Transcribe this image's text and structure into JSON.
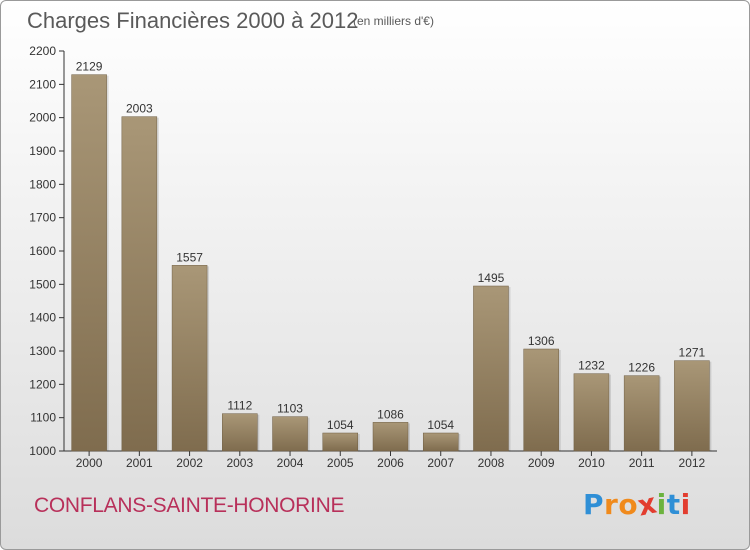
{
  "header": {
    "title": "Charges Financières 2000 à 2012",
    "unit": "(en milliers d'€)"
  },
  "footer": {
    "commune": "CONFLANS-SAINTE-HONORINE",
    "logo_letters": [
      "P",
      "r",
      "o",
      "x",
      "i",
      "t",
      "i"
    ],
    "logo_colors": [
      "#2f8fd6",
      "#f08a1c",
      "#f08a1c",
      "#e23d2f",
      "#6cb33e",
      "#2f8fd6",
      "#e23d2f"
    ]
  },
  "colors": {
    "bar_light": "#a99777",
    "bar_dark": "#7f6c4e",
    "axis": "#333333",
    "text": "#333333"
  },
  "chart_data": {
    "type": "bar",
    "title": "Charges Financières 2000 à 2012",
    "categories": [
      "2000",
      "2001",
      "2002",
      "2003",
      "2004",
      "2005",
      "2006",
      "2007",
      "2008",
      "2009",
      "2010",
      "2011",
      "2012"
    ],
    "values": [
      2129,
      2003,
      1557,
      1112,
      1103,
      1054,
      1086,
      1054,
      1495,
      1306,
      1232,
      1226,
      1271
    ],
    "ylim": [
      1000,
      2200
    ],
    "yticks": [
      1000,
      1100,
      1200,
      1300,
      1400,
      1500,
      1600,
      1700,
      1800,
      1900,
      2000,
      2100,
      2200
    ],
    "grid": false,
    "xlabel": "",
    "ylabel": ""
  }
}
